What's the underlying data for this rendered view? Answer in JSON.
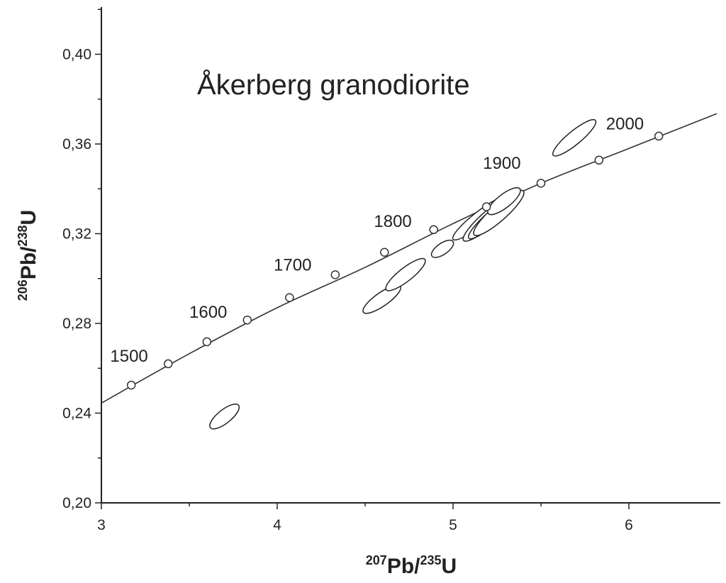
{
  "chart_data": {
    "type": "scatter",
    "title": "Åkerberg granodiorite",
    "xlabel": {
      "sup1": "207",
      "base1": "Pb/",
      "sup2": "235",
      "base2": "U"
    },
    "ylabel": {
      "sup1": "206",
      "base1": "Pb/",
      "sup2": "238",
      "base2": "U"
    },
    "xlim": [
      3,
      6.5
    ],
    "ylim": [
      0.2,
      0.42
    ],
    "x_ticks": [
      {
        "value": 3,
        "label": "3"
      },
      {
        "value": 4,
        "label": "4"
      },
      {
        "value": 5,
        "label": "5"
      },
      {
        "value": 6,
        "label": "6"
      }
    ],
    "y_ticks": [
      {
        "value": 0.2,
        "label": "0,20"
      },
      {
        "value": 0.24,
        "label": "0,24"
      },
      {
        "value": 0.28,
        "label": "0,28"
      },
      {
        "value": 0.32,
        "label": "0,32"
      },
      {
        "value": 0.36,
        "label": "0,36"
      },
      {
        "value": 0.4,
        "label": "0,40"
      }
    ],
    "concordia_curve": [
      {
        "x": 3.0,
        "y": 0.2445
      },
      {
        "x": 3.5,
        "y": 0.2665
      },
      {
        "x": 4.0,
        "y": 0.287
      },
      {
        "x": 4.5,
        "y": 0.305
      },
      {
        "x": 5.0,
        "y": 0.3245
      },
      {
        "x": 5.5,
        "y": 0.3425
      },
      {
        "x": 6.0,
        "y": 0.358
      },
      {
        "x": 6.5,
        "y": 0.3735
      }
    ],
    "concordia_markers": [
      {
        "x": 3.17,
        "y": 0.2525
      },
      {
        "x": 3.38,
        "y": 0.262
      },
      {
        "x": 3.6,
        "y": 0.2718
      },
      {
        "x": 3.83,
        "y": 0.2815
      },
      {
        "x": 4.07,
        "y": 0.2915
      },
      {
        "x": 4.33,
        "y": 0.3017
      },
      {
        "x": 4.61,
        "y": 0.3117
      },
      {
        "x": 4.89,
        "y": 0.3218
      },
      {
        "x": 5.19,
        "y": 0.332
      },
      {
        "x": 5.5,
        "y": 0.3425
      },
      {
        "x": 5.83,
        "y": 0.3528
      },
      {
        "x": 6.17,
        "y": 0.3635
      }
    ],
    "age_labels": [
      {
        "label": "1500",
        "x": 3.05,
        "y": 0.263
      },
      {
        "label": "1600",
        "x": 3.5,
        "y": 0.2825
      },
      {
        "label": "1700",
        "x": 3.98,
        "y": 0.3035
      },
      {
        "label": "1800",
        "x": 4.55,
        "y": 0.323
      },
      {
        "label": "1900",
        "x": 5.17,
        "y": 0.349
      },
      {
        "label": "2000",
        "x": 5.87,
        "y": 0.3665
      }
    ],
    "error_ellipses": [
      {
        "x1": 3.62,
        "y1": 0.2335,
        "x2": 3.78,
        "y2": 0.2435,
        "width": 0.003
      },
      {
        "x1": 4.49,
        "y1": 0.285,
        "x2": 4.7,
        "y2": 0.2965,
        "width": 0.003
      },
      {
        "x1": 4.62,
        "y1": 0.295,
        "x2": 4.84,
        "y2": 0.3085,
        "width": 0.003
      },
      {
        "x1": 4.88,
        "y1": 0.31,
        "x2": 5.0,
        "y2": 0.3165,
        "width": 0.0025
      },
      {
        "x1": 5.0,
        "y1": 0.3175,
        "x2": 5.3,
        "y2": 0.336,
        "width": 0.003
      },
      {
        "x1": 5.06,
        "y1": 0.317,
        "x2": 5.38,
        "y2": 0.3385,
        "width": 0.0035
      },
      {
        "x1": 5.09,
        "y1": 0.318,
        "x2": 5.36,
        "y2": 0.3365,
        "width": 0.003
      },
      {
        "x1": 5.12,
        "y1": 0.3195,
        "x2": 5.4,
        "y2": 0.339,
        "width": 0.0035
      },
      {
        "x1": 5.2,
        "y1": 0.329,
        "x2": 5.38,
        "y2": 0.34,
        "width": 0.003
      },
      {
        "x1": 5.57,
        "y1": 0.355,
        "x2": 5.81,
        "y2": 0.3705,
        "width": 0.003
      }
    ],
    "grid": false,
    "legend": "none"
  }
}
